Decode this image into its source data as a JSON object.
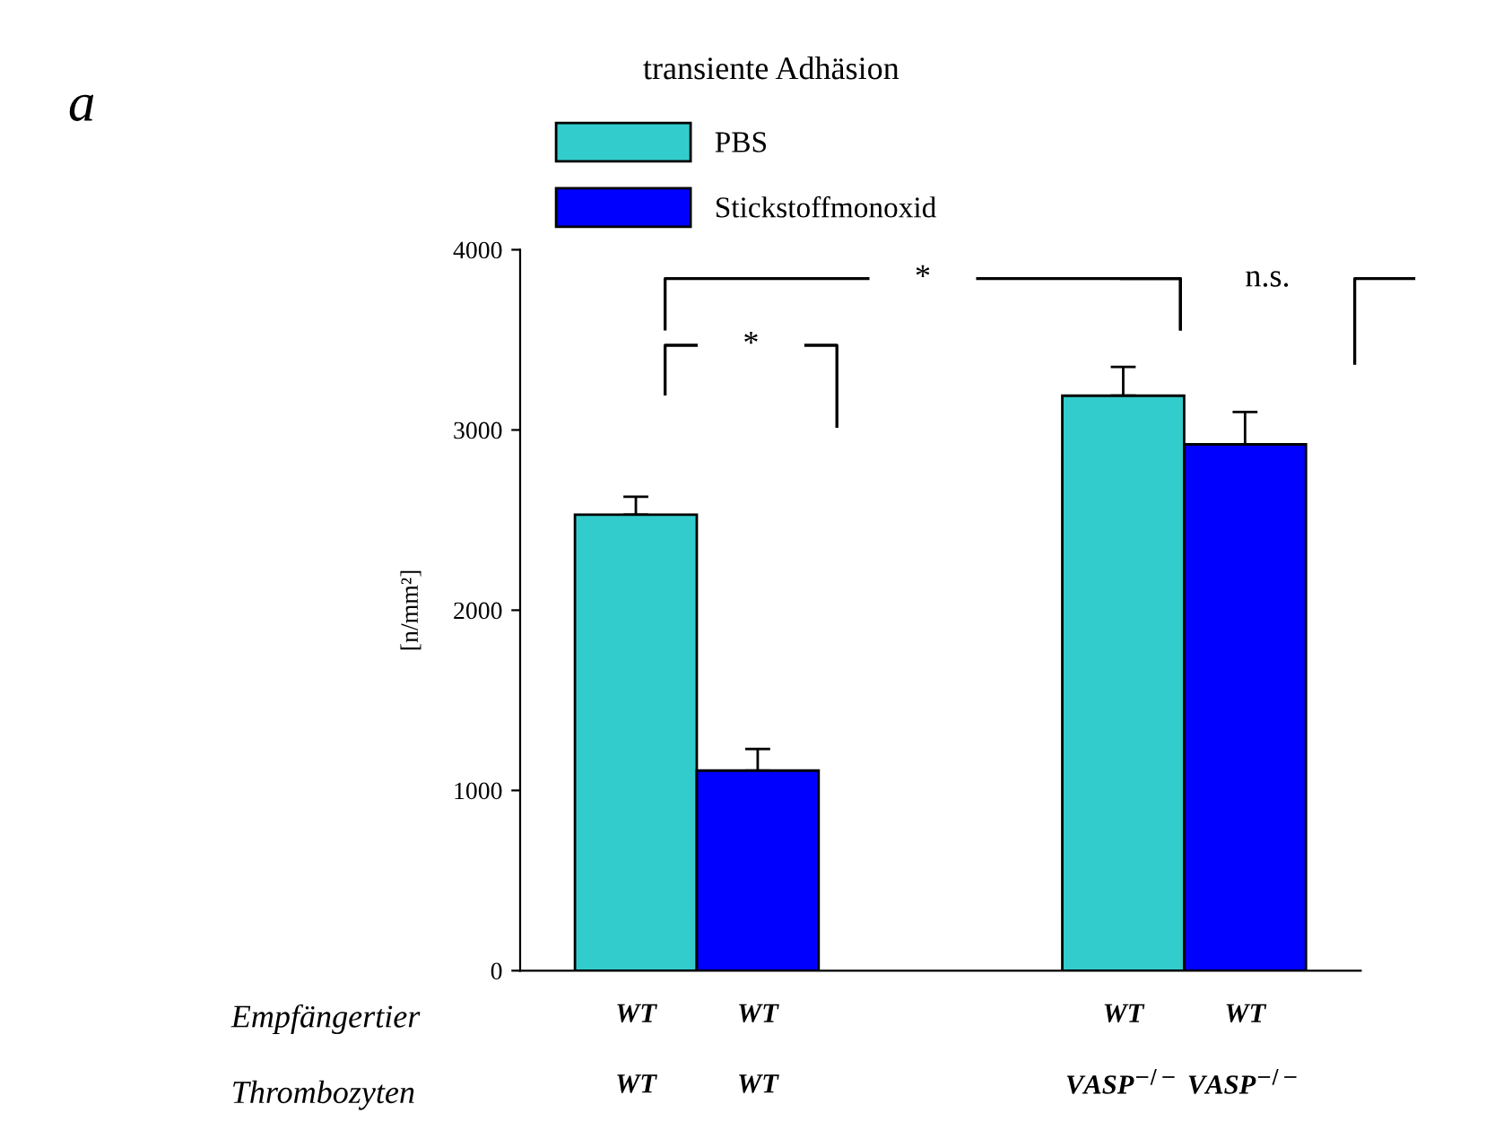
{
  "chart_data": {
    "type": "bar",
    "title": "transiente Adhäsion",
    "ylabel": "[n/mm²]",
    "categories": [
      "WT\nWT",
      "WT\nWT",
      null,
      null,
      "WT\nVASP$^{−/−}$",
      "WT\nVASP$^{−/−}$"
    ],
    "series": [
      {
        "name": "PBS",
        "color": "#33cccc",
        "values": [
          2530,
          null,
          null,
          null,
          3190,
          null
        ],
        "errors": [
          [
            2530,
            2630
          ],
          null,
          null,
          null,
          [
            3190,
            3350
          ],
          null
        ]
      },
      {
        "name": "Stickstoffmonoxid",
        "color": "#0000ff",
        "values": [
          null,
          1110,
          null,
          null,
          null,
          2920
        ],
        "errors": [
          null,
          [
            1110,
            1230
          ],
          null,
          null,
          null,
          [
            2920,
            3100
          ]
        ]
      }
    ],
    "ylim": [
      0,
      4000
    ],
    "yticks": [
      0,
      1000,
      2000,
      3000,
      4000
    ],
    "grid": false,
    "legend": "top",
    "annotations": [
      "a",
      "Empfängertier",
      "Thrombozyten",
      "*",
      "*",
      "n.s."
    ]
  }
}
